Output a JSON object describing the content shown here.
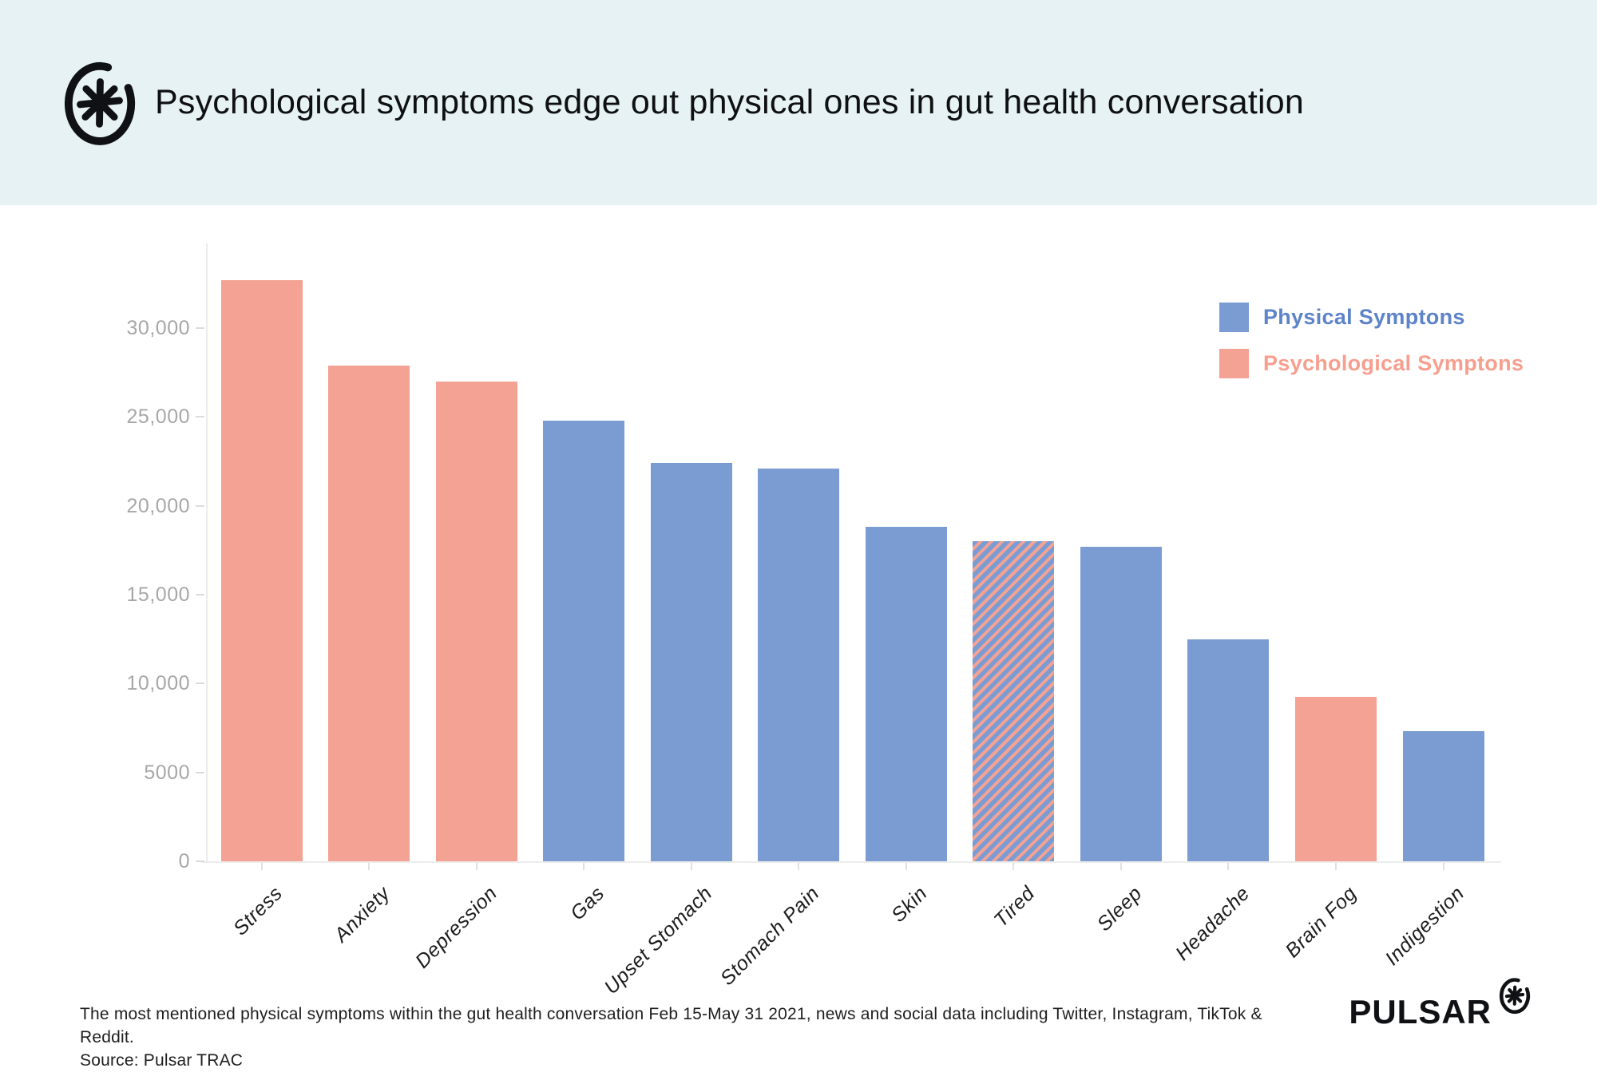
{
  "header": {
    "title": "Psychological symptoms edge out physical ones in gut health conversation"
  },
  "legend": [
    {
      "label": "Physical Symptons",
      "type": "physical"
    },
    {
      "label": "Psychological Symptons",
      "type": "psychological"
    }
  ],
  "chart_data": {
    "type": "bar",
    "title": "Psychological symptoms edge out physical ones in gut health conversation",
    "categories": [
      "Stress",
      "Anxiety",
      "Depression",
      "Gas",
      "Upset Stomach",
      "Stomach Pain",
      "Skin",
      "Tired",
      "Sleep",
      "Headache",
      "Brain Fog",
      "Indigestion"
    ],
    "values": [
      32700,
      27900,
      27000,
      24800,
      22400,
      22100,
      18800,
      18000,
      17700,
      12500,
      9250,
      7300
    ],
    "classes": [
      "psychological",
      "psychological",
      "psychological",
      "physical",
      "physical",
      "physical",
      "physical",
      "both",
      "physical",
      "physical",
      "psychological",
      "physical"
    ],
    "xlabel": "",
    "ylabel": "",
    "ylim": [
      0,
      33000
    ],
    "grid": false,
    "legend_position": "top-right",
    "yticks": [
      {
        "value": 0,
        "label": "0"
      },
      {
        "value": 5000,
        "label": "5000"
      },
      {
        "value": 10000,
        "label": "10,000"
      },
      {
        "value": 15000,
        "label": "15,000"
      },
      {
        "value": 20000,
        "label": "20,000"
      },
      {
        "value": 25000,
        "label": "25,000"
      },
      {
        "value": 30000,
        "label": "30,000"
      }
    ]
  },
  "colors": {
    "physical": "#7b9cd3",
    "psychological": "#f4a294",
    "legend_physical_text": "#5d83c9",
    "legend_psychological_text": "#f79e8e",
    "header_bg": "#e7f2f5",
    "axis": "#ececec",
    "tick_label": "#a7a7a7"
  },
  "footer": {
    "note": "The most mentioned physical symptoms within the gut health conversation Feb 15-May 31 2021, news and social data including Twitter, Instagram, TikTok & Reddit.",
    "source": "Source: Pulsar TRAC",
    "brand": "PULSAR"
  }
}
